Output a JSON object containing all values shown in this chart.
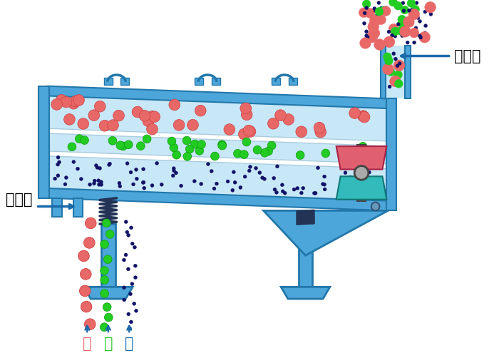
{
  "bg_color": "#ffffff",
  "mc": "#4da6d9",
  "md": "#2277aa",
  "sb": "#c8e8f8",
  "color_coarse": "#e86868",
  "color_medium": "#22cc22",
  "color_fine": "#111166",
  "label_inlet": "进料口",
  "label_outlet": "出料口",
  "label_coarse": "粗",
  "label_medium": "中",
  "label_fine": "细",
  "arrow_color": "#1a6aaa"
}
